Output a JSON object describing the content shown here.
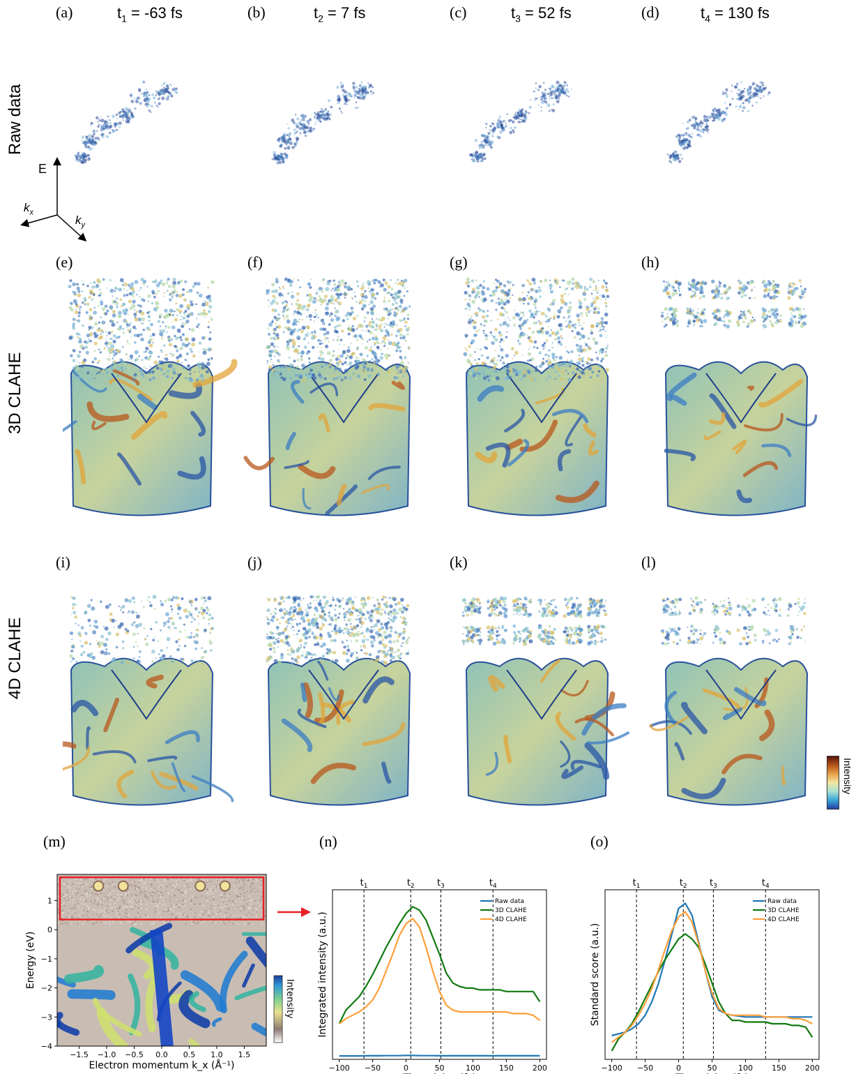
{
  "panel_labels": [
    "(a)",
    "(b)",
    "(c)",
    "(d)",
    "(e)",
    "(f)",
    "(g)",
    "(h)",
    "(i)",
    "(j)",
    "(k)",
    "(l)",
    "(m)",
    "(n)",
    "(o)"
  ],
  "time_titles": [
    {
      "t": "t",
      "sub": "1",
      "rest": " = -63 fs"
    },
    {
      "t": "t",
      "sub": "2",
      "rest": " = 7 fs"
    },
    {
      "t": "t",
      "sub": "3",
      "rest": " = 52 fs"
    },
    {
      "t": "t",
      "sub": "4",
      "rest": " = 130 fs"
    }
  ],
  "row_labels": [
    "Raw data",
    "3D CLAHE",
    "4D CLAHE"
  ],
  "axes_glyph": {
    "e": "E",
    "kx": "k",
    "kx_sub": "x",
    "ky": "k",
    "ky_sub": "y"
  },
  "colorbar_label": "Intensity",
  "colors": {
    "raw": "#1f77b4",
    "clahe3d": "#107a10",
    "clahe4d": "#ff9f3a",
    "red_box": "#e8202a"
  },
  "chart_data": [
    {
      "type": "heatmap",
      "panel": "(m)",
      "xlabel": "Electron momentum k_x (Å⁻¹)",
      "ylabel": "Energy (eV)",
      "xlim": [
        -1.9,
        1.9
      ],
      "ylim": [
        -4,
        1.9
      ],
      "xticks": [
        "−1.5",
        "−1.0",
        "−0.5",
        "0.0",
        "0.5",
        "1.0",
        "1.5"
      ],
      "xtick_values": [
        -1.5,
        -1.0,
        -0.5,
        0.0,
        0.5,
        1.0,
        1.5
      ],
      "yticks": [
        "1",
        "0",
        "−1",
        "−2",
        "−3",
        "−4"
      ],
      "ytick_values": [
        1,
        0,
        -1,
        -2,
        -3,
        -4
      ],
      "highlight_box": {
        "x_range": [
          -1.85,
          1.85
        ],
        "y_range": [
          0.35,
          1.8
        ]
      },
      "colorbar_label": "Intensity"
    },
    {
      "type": "line",
      "panel": "(n)",
      "xlabel": "Time delay (fs)",
      "ylabel": "Integrated intensity (a.u.)",
      "xlim": [
        -110,
        210
      ],
      "ylim": [
        0,
        1
      ],
      "xticks": [
        "−100",
        "−50",
        "0",
        "50",
        "100",
        "150",
        "200"
      ],
      "xtick_values": [
        -100,
        -50,
        0,
        50,
        100,
        150,
        200
      ],
      "vlines": [
        {
          "x": -63,
          "label": "t1"
        },
        {
          "x": 7,
          "label": "t2"
        },
        {
          "x": 52,
          "label": "t3"
        },
        {
          "x": 130,
          "label": "t4"
        }
      ],
      "legend": "top-right",
      "x": [
        -100,
        -90,
        -80,
        -70,
        -60,
        -50,
        -40,
        -30,
        -20,
        -10,
        0,
        10,
        20,
        30,
        40,
        50,
        60,
        70,
        80,
        90,
        100,
        110,
        120,
        130,
        140,
        150,
        160,
        170,
        180,
        190,
        200
      ],
      "series": [
        {
          "name": "Raw data",
          "values": [
            0.02,
            0.02,
            0.02,
            0.02,
            0.021,
            0.021,
            0.021,
            0.022,
            0.022,
            0.022,
            0.023,
            0.023,
            0.022,
            0.022,
            0.022,
            0.021,
            0.021,
            0.021,
            0.021,
            0.021,
            0.021,
            0.021,
            0.021,
            0.021,
            0.021,
            0.021,
            0.021,
            0.021,
            0.021,
            0.021,
            0.021
          ]
        },
        {
          "name": "3D CLAHE",
          "values": [
            0.21,
            0.29,
            0.33,
            0.37,
            0.43,
            0.5,
            0.58,
            0.66,
            0.73,
            0.8,
            0.86,
            0.9,
            0.88,
            0.82,
            0.72,
            0.62,
            0.51,
            0.45,
            0.43,
            0.42,
            0.42,
            0.41,
            0.41,
            0.41,
            0.41,
            0.4,
            0.4,
            0.4,
            0.4,
            0.4,
            0.34
          ]
        },
        {
          "name": "4D CLAHE",
          "values": [
            0.21,
            0.24,
            0.26,
            0.28,
            0.31,
            0.35,
            0.42,
            0.52,
            0.62,
            0.73,
            0.8,
            0.83,
            0.78,
            0.66,
            0.52,
            0.4,
            0.32,
            0.29,
            0.28,
            0.28,
            0.28,
            0.28,
            0.28,
            0.28,
            0.28,
            0.28,
            0.27,
            0.27,
            0.27,
            0.26,
            0.23
          ]
        }
      ]
    },
    {
      "type": "line",
      "panel": "(o)",
      "xlabel": "Time delay (fs)",
      "ylabel": "Standard score (a.u.)",
      "xlim": [
        -110,
        210
      ],
      "ylim": [
        0,
        1
      ],
      "xticks": [
        "−100",
        "−50",
        "0",
        "50",
        "100",
        "150",
        "200"
      ],
      "xtick_values": [
        -100,
        -50,
        0,
        50,
        100,
        150,
        200
      ],
      "vlines": [
        {
          "x": -63,
          "label": "t1"
        },
        {
          "x": 7,
          "label": "t2"
        },
        {
          "x": 52,
          "label": "t3"
        },
        {
          "x": 130,
          "label": "t4"
        }
      ],
      "legend": "top-right",
      "x": [
        -100,
        -90,
        -80,
        -70,
        -60,
        -50,
        -40,
        -30,
        -20,
        -10,
        0,
        10,
        20,
        30,
        40,
        50,
        60,
        70,
        80,
        90,
        100,
        110,
        120,
        130,
        140,
        150,
        160,
        170,
        180,
        190,
        200
      ],
      "series": [
        {
          "name": "Raw data",
          "values": [
            0.14,
            0.15,
            0.16,
            0.18,
            0.21,
            0.26,
            0.34,
            0.45,
            0.59,
            0.74,
            0.89,
            0.92,
            0.85,
            0.69,
            0.52,
            0.37,
            0.29,
            0.27,
            0.26,
            0.255,
            0.25,
            0.25,
            0.25,
            0.25,
            0.25,
            0.25,
            0.25,
            0.25,
            0.25,
            0.25,
            0.25
          ]
        },
        {
          "name": "3D CLAHE",
          "values": [
            0.05,
            0.12,
            0.16,
            0.21,
            0.28,
            0.36,
            0.44,
            0.52,
            0.59,
            0.65,
            0.71,
            0.74,
            0.71,
            0.66,
            0.56,
            0.45,
            0.34,
            0.27,
            0.23,
            0.23,
            0.22,
            0.22,
            0.22,
            0.22,
            0.21,
            0.21,
            0.21,
            0.2,
            0.2,
            0.19,
            0.13
          ]
        },
        {
          "name": "4D CLAHE",
          "values": [
            0.1,
            0.13,
            0.16,
            0.2,
            0.26,
            0.33,
            0.42,
            0.53,
            0.65,
            0.76,
            0.84,
            0.87,
            0.81,
            0.68,
            0.52,
            0.39,
            0.3,
            0.27,
            0.26,
            0.26,
            0.26,
            0.26,
            0.26,
            0.25,
            0.25,
            0.25,
            0.25,
            0.24,
            0.24,
            0.23,
            0.21
          ]
        }
      ]
    }
  ]
}
